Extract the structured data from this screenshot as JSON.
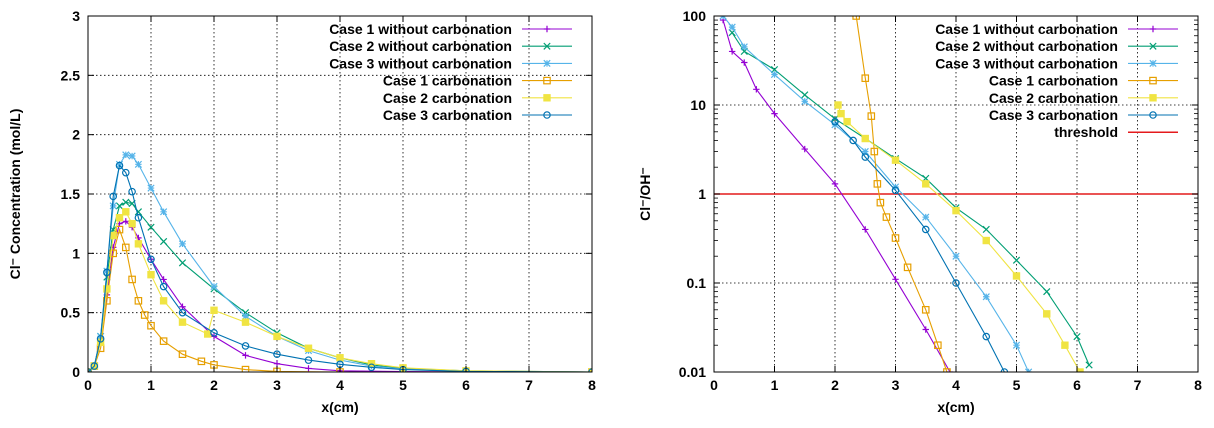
{
  "chart_data": [
    {
      "type": "line",
      "title": "",
      "xlabel": "x(cm)",
      "ylabel": "Cl⁻ Concentration (mol/L)",
      "xlim": [
        0,
        8
      ],
      "ylim": [
        0,
        3
      ],
      "y_scale": "linear",
      "grid": true,
      "legend_position": "top-right",
      "x_ticks": [
        "0",
        "1",
        "2",
        "3",
        "4",
        "5",
        "6",
        "7",
        "8"
      ],
      "y_ticks": [
        "0",
        "0.5",
        "1",
        "1.5",
        "2",
        "2.5",
        "3"
      ],
      "series": [
        {
          "name": "Case 1 without carbonation",
          "color": "#9400d3",
          "marker": "plus",
          "x": [
            0,
            0.1,
            0.2,
            0.3,
            0.4,
            0.5,
            0.6,
            0.7,
            0.8,
            1.0,
            1.2,
            1.5,
            2.0,
            2.5,
            3.0,
            3.5,
            4.0,
            5.0,
            6.0,
            8.0
          ],
          "y": [
            0,
            0.05,
            0.28,
            0.65,
            1.05,
            1.25,
            1.27,
            1.22,
            1.13,
            0.95,
            0.78,
            0.55,
            0.3,
            0.14,
            0.07,
            0.03,
            0.01,
            0.003,
            0.001,
            0
          ]
        },
        {
          "name": "Case 2 without carbonation",
          "color": "#009e73",
          "marker": "cross",
          "x": [
            0,
            0.1,
            0.2,
            0.3,
            0.4,
            0.5,
            0.6,
            0.7,
            0.8,
            1.0,
            1.2,
            1.5,
            2.0,
            2.5,
            3.0,
            3.5,
            4.0,
            4.5,
            5.0,
            6.0,
            8.0
          ],
          "y": [
            0,
            0.05,
            0.3,
            0.8,
            1.2,
            1.4,
            1.43,
            1.42,
            1.35,
            1.22,
            1.1,
            0.92,
            0.7,
            0.5,
            0.33,
            0.2,
            0.12,
            0.06,
            0.03,
            0.01,
            0
          ]
        },
        {
          "name": "Case 3 without carbonation",
          "color": "#56b4e9",
          "marker": "star",
          "x": [
            0,
            0.1,
            0.2,
            0.3,
            0.4,
            0.5,
            0.6,
            0.7,
            0.8,
            1.0,
            1.2,
            1.5,
            2.0,
            2.5,
            3.0,
            3.5,
            4.0,
            4.5,
            5.0,
            6.0,
            8.0
          ],
          "y": [
            0,
            0.05,
            0.3,
            0.85,
            1.4,
            1.75,
            1.83,
            1.82,
            1.75,
            1.55,
            1.35,
            1.08,
            0.72,
            0.47,
            0.3,
            0.18,
            0.1,
            0.05,
            0.025,
            0.005,
            0
          ]
        },
        {
          "name": "Case 1 carbonation",
          "color": "#e69f00",
          "marker": "open-square",
          "x": [
            0,
            0.1,
            0.2,
            0.3,
            0.4,
            0.5,
            0.6,
            0.7,
            0.8,
            0.9,
            1.0,
            1.2,
            1.5,
            1.8,
            2.0,
            2.5,
            3.0,
            4.0,
            8.0
          ],
          "y": [
            0,
            0.05,
            0.2,
            0.6,
            1.0,
            1.2,
            1.05,
            0.78,
            0.6,
            0.48,
            0.39,
            0.26,
            0.15,
            0.09,
            0.06,
            0.02,
            0.005,
            0,
            0
          ]
        },
        {
          "name": "Case 2 carbonation",
          "color": "#f0e442",
          "marker": "filled-square",
          "x": [
            0,
            0.1,
            0.2,
            0.3,
            0.4,
            0.5,
            0.6,
            0.7,
            0.8,
            1.0,
            1.2,
            1.5,
            1.9,
            2.0,
            2.5,
            3.0,
            3.5,
            4.0,
            4.5,
            5.0,
            6.0,
            8.0
          ],
          "y": [
            0,
            0.05,
            0.25,
            0.7,
            1.15,
            1.3,
            1.35,
            1.25,
            1.08,
            0.82,
            0.6,
            0.42,
            0.32,
            0.52,
            0.42,
            0.3,
            0.2,
            0.12,
            0.07,
            0.035,
            0.01,
            0
          ]
        },
        {
          "name": "Case 3 carbonation",
          "color": "#0072b2",
          "marker": "open-circle",
          "x": [
            0,
            0.1,
            0.2,
            0.3,
            0.4,
            0.5,
            0.6,
            0.7,
            0.8,
            1.0,
            1.2,
            1.5,
            2.0,
            2.5,
            3.0,
            3.5,
            4.0,
            4.5,
            5.0,
            6.0,
            8.0
          ],
          "y": [
            0,
            0.05,
            0.28,
            0.84,
            1.48,
            1.74,
            1.68,
            1.52,
            1.3,
            0.95,
            0.72,
            0.5,
            0.33,
            0.22,
            0.15,
            0.1,
            0.065,
            0.04,
            0.02,
            0.005,
            0
          ]
        }
      ]
    },
    {
      "type": "line",
      "title": "",
      "xlabel": "x(cm)",
      "ylabel": "Cl⁻/OH⁻",
      "xlim": [
        0,
        8
      ],
      "ylim": [
        0.01,
        100
      ],
      "y_scale": "log",
      "grid": true,
      "legend_position": "top-right",
      "x_ticks": [
        "0",
        "1",
        "2",
        "3",
        "4",
        "5",
        "6",
        "7",
        "8"
      ],
      "y_ticks": [
        "0.01",
        "0.1",
        "1",
        "10",
        "100"
      ],
      "threshold": {
        "name": "threshold",
        "value": 1,
        "color": "#e41a1c"
      },
      "series": [
        {
          "name": "Case 1 without carbonation",
          "color": "#9400d3",
          "marker": "plus",
          "x": [
            0.15,
            0.3,
            0.5,
            0.7,
            1.0,
            1.5,
            2.0,
            2.5,
            3.0,
            3.5,
            3.9
          ],
          "y": [
            90,
            40,
            30,
            15,
            8,
            3.2,
            1.3,
            0.4,
            0.11,
            0.03,
            0.01
          ]
        },
        {
          "name": "Case 2 without carbonation",
          "color": "#009e73",
          "marker": "cross",
          "x": [
            0.3,
            0.5,
            1.0,
            1.5,
            2.0,
            2.5,
            3.0,
            3.5,
            4.0,
            4.5,
            5.0,
            5.5,
            6.0,
            6.2
          ],
          "y": [
            65,
            40,
            25,
            13,
            7,
            4.2,
            2.5,
            1.5,
            0.7,
            0.4,
            0.18,
            0.08,
            0.025,
            0.012
          ]
        },
        {
          "name": "Case 3 without carbonation",
          "color": "#56b4e9",
          "marker": "star",
          "x": [
            0.15,
            0.3,
            0.5,
            1.0,
            1.5,
            2.0,
            2.5,
            3.0,
            3.5,
            4.0,
            4.5,
            5.0,
            5.2
          ],
          "y": [
            100,
            75,
            45,
            22,
            11,
            6,
            3,
            1.2,
            0.55,
            0.2,
            0.07,
            0.02,
            0.01
          ]
        },
        {
          "name": "Case 1 carbonation",
          "color": "#e69f00",
          "marker": "open-square",
          "x": [
            2.35,
            2.5,
            2.6,
            2.65,
            2.7,
            2.75,
            2.85,
            3.0,
            3.2,
            3.5,
            3.7,
            3.85
          ],
          "y": [
            100,
            20,
            7.5,
            3,
            1.3,
            0.8,
            0.55,
            0.32,
            0.15,
            0.05,
            0.02,
            0.01
          ]
        },
        {
          "name": "Case 2 carbonation",
          "color": "#f0e442",
          "marker": "filled-square",
          "x": [
            2.05,
            2.1,
            2.2,
            2.5,
            3.0,
            3.5,
            4.0,
            4.5,
            5.0,
            5.5,
            5.8,
            6.05
          ],
          "y": [
            10,
            8,
            6.5,
            4.2,
            2.4,
            1.3,
            0.65,
            0.3,
            0.12,
            0.045,
            0.02,
            0.01
          ]
        },
        {
          "name": "Case 3 carbonation",
          "color": "#0072b2",
          "marker": "open-circle",
          "x": [
            2.0,
            2.3,
            2.5,
            3.0,
            3.5,
            4.0,
            4.5,
            4.8
          ],
          "y": [
            6.5,
            4,
            2.6,
            1.1,
            0.4,
            0.1,
            0.025,
            0.01
          ]
        }
      ]
    }
  ]
}
